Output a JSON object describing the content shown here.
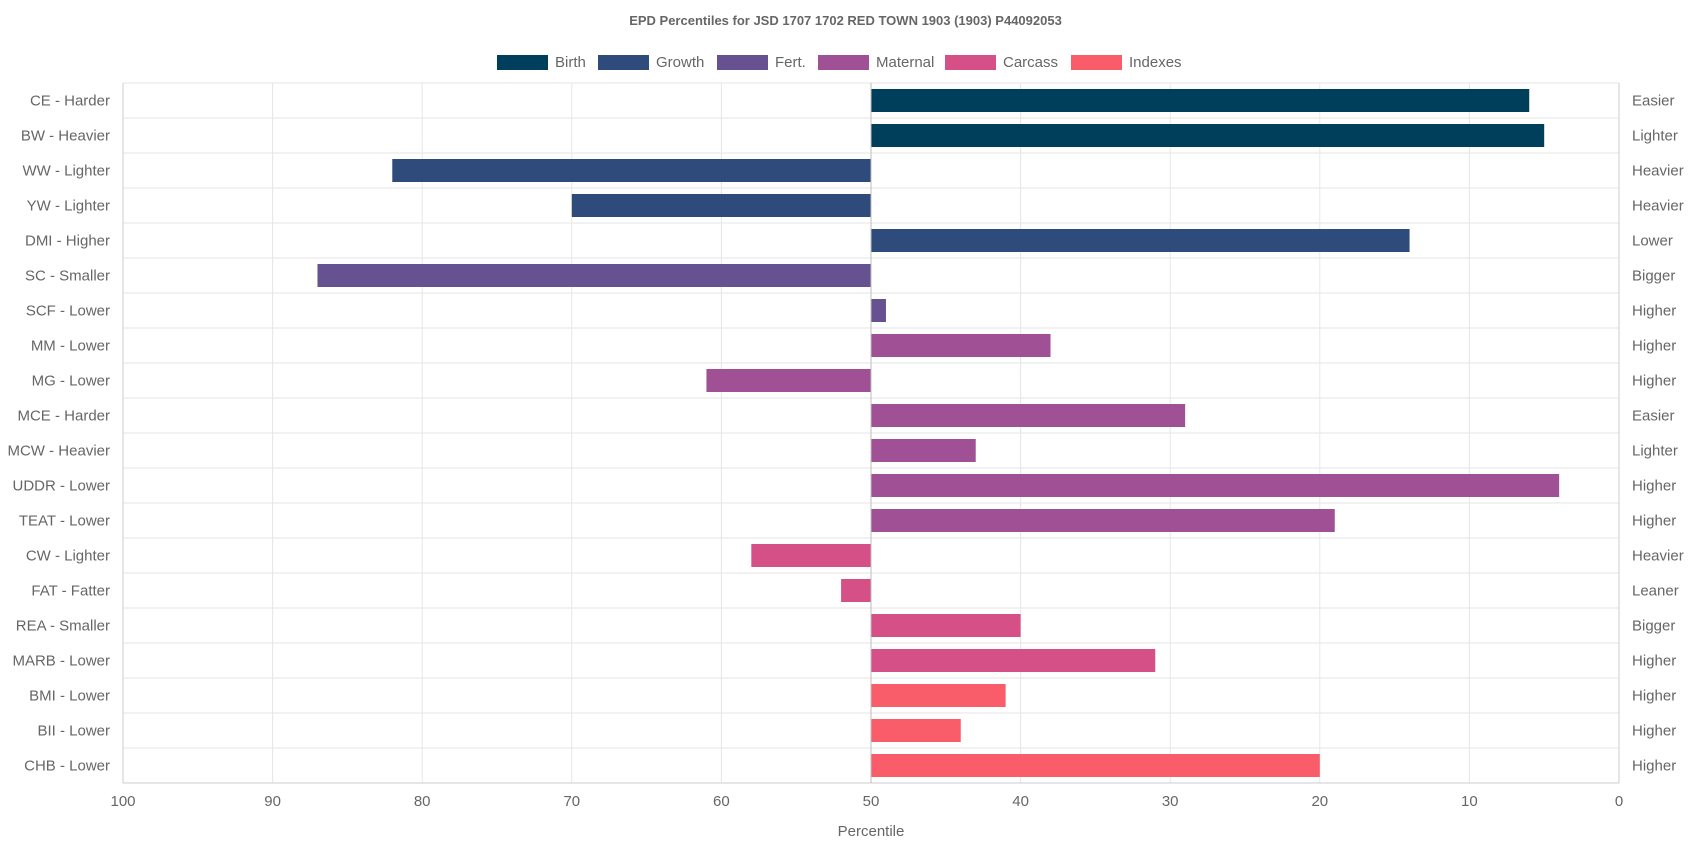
{
  "chart_data": {
    "type": "bar",
    "orientation": "horizontal",
    "title": "EPD Percentiles for JSD 1707 1702 RED TOWN 1903 (1903) P44092053",
    "xlabel": "Percentile",
    "ylabel": "",
    "xlim": [
      100,
      0
    ],
    "x_reversed": true,
    "bar_origin": 50,
    "x_ticks": [
      100,
      90,
      80,
      70,
      60,
      50,
      40,
      30,
      20,
      10,
      0
    ],
    "grid": true,
    "legend_position": "top-center",
    "legend": [
      {
        "name": "Birth",
        "color": "#003f5c"
      },
      {
        "name": "Growth",
        "color": "#2f4b7c"
      },
      {
        "name": "Fert.",
        "color": "#665191"
      },
      {
        "name": "Maternal",
        "color": "#a05195"
      },
      {
        "name": "Carcass",
        "color": "#d45087"
      },
      {
        "name": "Indexes",
        "color": "#f95d6a"
      }
    ],
    "categories": [
      "CE - Harder",
      "BW - Heavier",
      "WW - Lighter",
      "YW - Lighter",
      "DMI - Higher",
      "SC - Smaller",
      "SCF - Lower",
      "MM - Lower",
      "MG - Lower",
      "MCE - Harder",
      "MCW - Heavier",
      "UDDR - Lower",
      "TEAT - Lower",
      "CW - Lighter",
      "FAT - Fatter",
      "REA - Smaller",
      "MARB - Lower",
      "BMI - Lower",
      "BII - Lower",
      "CHB - Lower"
    ],
    "right_labels": [
      "Easier",
      "Lighter",
      "Heavier",
      "Heavier",
      "Lower",
      "Bigger",
      "Higher",
      "Higher",
      "Higher",
      "Easier",
      "Lighter",
      "Higher",
      "Higher",
      "Heavier",
      "Leaner",
      "Bigger",
      "Higher",
      "Higher",
      "Higher",
      "Higher"
    ],
    "groups": [
      "Birth",
      "Birth",
      "Growth",
      "Growth",
      "Growth",
      "Fert.",
      "Fert.",
      "Maternal",
      "Maternal",
      "Maternal",
      "Maternal",
      "Maternal",
      "Maternal",
      "Carcass",
      "Carcass",
      "Carcass",
      "Carcass",
      "Indexes",
      "Indexes",
      "Indexes"
    ],
    "values": [
      6,
      5,
      82,
      70,
      14,
      87,
      49,
      38,
      61,
      29,
      43,
      4,
      19,
      58,
      52,
      40,
      31,
      41,
      44,
      20
    ]
  }
}
